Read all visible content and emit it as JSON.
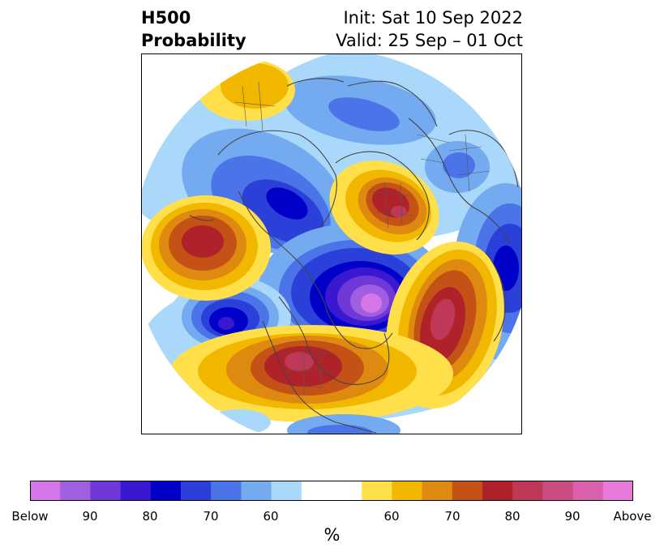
{
  "header": {
    "title_line1": "H500",
    "title_line2": "Probability",
    "init_text": "Init: Sat 10 Sep 2022",
    "valid_text": "Valid: 25 Sep – 01 Oct"
  },
  "colorbar": {
    "unit": "%",
    "colors": [
      "#d576e8",
      "#a05ee0",
      "#7038d8",
      "#3a18d0",
      "#0000c8",
      "#2a40d8",
      "#4a74e8",
      "#74aaf0",
      "#aad8fa",
      "#ffffff",
      "#ffe04a",
      "#f2b800",
      "#de8a10",
      "#c45216",
      "#b0222a",
      "#c03858",
      "#cc4c84",
      "#d860ac",
      "#e67ad8"
    ],
    "tick_labels": [
      "Below",
      "90",
      "80",
      "70",
      "60",
      "60",
      "70",
      "80",
      "90",
      "Above"
    ]
  },
  "map": {
    "background": "#ffffff",
    "coastline_color": "#444444",
    "border_color": "#555555"
  }
}
